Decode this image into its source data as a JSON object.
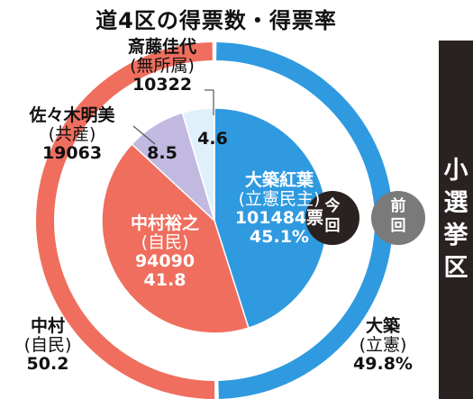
{
  "title": "道4区の得票数・得票率",
  "side_label": "小選挙区",
  "chart_data": {
    "type": "pie",
    "subtype": "nested-donut",
    "title": "道4区の得票数・得票率",
    "current": {
      "label": "今回",
      "slices": [
        {
          "name": "大築紅葉",
          "party": "(立憲民主)",
          "votes": "101484票",
          "pct": 45.1,
          "pct_label": "45.1%",
          "color": "#2f9ae0"
        },
        {
          "name": "中村裕之",
          "party": "(自民)",
          "votes": "94090",
          "pct": 41.8,
          "pct_label": "41.8",
          "color": "#ef6e5e"
        },
        {
          "name": "佐々木明美",
          "party": "(共産)",
          "votes": "19063",
          "pct": 8.5,
          "pct_label": "8.5",
          "color": "#c1b9e0"
        },
        {
          "name": "斎藤佳代",
          "party": "(無所属)",
          "votes": "10322",
          "pct": 4.6,
          "pct_label": "4.6",
          "color": "#dff0fb"
        }
      ]
    },
    "previous": {
      "label": "前回",
      "slices": [
        {
          "name": "大築",
          "party": "(立憲)",
          "pct": 49.8,
          "pct_label": "49.8%",
          "color": "#2f9ae0"
        },
        {
          "name": "中村",
          "party": "(自民)",
          "pct": 50.2,
          "pct_label": "50.2",
          "color": "#ef6e5e"
        }
      ]
    }
  }
}
